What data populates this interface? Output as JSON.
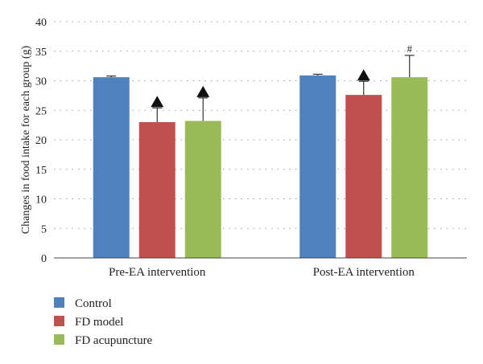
{
  "chart_data": {
    "type": "bar",
    "ylabel": "Changes in food intake for each group (g)",
    "ylim": [
      0,
      40
    ],
    "yticks": [
      0,
      5,
      10,
      15,
      20,
      25,
      30,
      35,
      40
    ],
    "grid": true,
    "legend_position": "bottom-left",
    "categories": [
      "Pre-EA intervention",
      "Post-EA intervention"
    ],
    "series": [
      {
        "name": "Control",
        "color": "#4f81bd",
        "values": [
          30.6,
          30.9
        ],
        "errors": [
          0.2,
          0.2
        ],
        "marks": [
          "",
          ""
        ]
      },
      {
        "name": "FD model",
        "color": "#c0504d",
        "values": [
          23.0,
          27.6
        ],
        "errors": [
          2.4,
          2.3
        ],
        "marks": [
          "triangle",
          "triangle"
        ]
      },
      {
        "name": "FD acupuncture",
        "color": "#9bbb59",
        "values": [
          23.2,
          30.6
        ],
        "errors": [
          3.9,
          3.7
        ],
        "marks": [
          "triangle",
          "#"
        ]
      }
    ]
  }
}
